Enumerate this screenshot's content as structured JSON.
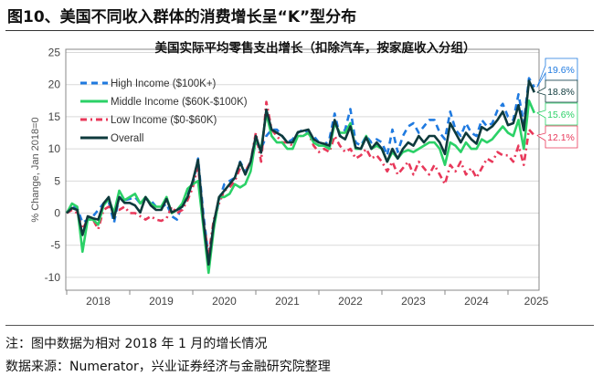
{
  "figure_title": "图10、美国不同收入群体的消费增长呈“K”型分布",
  "notes": [
    "注：图中数据为相对 2018 年 1 月的增长情况",
    "数据来源：Numerator，兴业证券经济与金融研究院整理"
  ],
  "chart_data": {
    "type": "line",
    "title": "美国实际平均零售支出增长（扣除汽车，按家庭收入分组）",
    "ylabel": "% Change, Jan 2018=0",
    "xlabel": "",
    "x_start": "2018-01",
    "x_end": "2025-06",
    "x_frequency": "monthly",
    "xticks": [
      "2018",
      "2019",
      "2020",
      "2021",
      "2022",
      "2023",
      "2024",
      "2025"
    ],
    "yticks": [
      -10,
      -5,
      0,
      5,
      10,
      15,
      20,
      25
    ],
    "ylim": [
      -12,
      25.5
    ],
    "grid": "horizontal",
    "legend_placement": "top-left",
    "series": [
      {
        "name": "High Income ($100K+)",
        "color": "#1f7ae0",
        "style": "dashed",
        "end_label": "19.6%",
        "values": [
          0,
          1.2,
          0.8,
          -1.5,
          -1,
          -0.5,
          0.5,
          1.5,
          1.8,
          -1.5,
          2.5,
          2,
          2.2,
          2.5,
          1.5,
          2.2,
          2,
          1,
          0.8,
          1.5,
          -0.5,
          -1,
          1.5,
          3,
          4.5,
          8.5,
          0,
          -7,
          -2,
          2,
          4.5,
          5,
          5.5,
          8,
          6.5,
          7.5,
          11,
          10,
          12,
          13,
          13,
          12,
          11,
          11.5,
          12.5,
          13,
          12.5,
          12,
          11,
          10.5,
          11.5,
          15.5,
          12,
          13,
          16.2,
          11,
          10.5,
          12,
          11,
          11.5,
          11,
          9,
          13,
          9.5,
          12,
          13.5,
          14,
          12.5,
          13.5,
          14.5,
          14.5,
          12.5,
          11.5,
          15.8,
          13,
          12,
          14,
          12.5,
          12,
          14.5,
          13.5,
          14,
          16,
          17,
          15,
          14.5,
          18.5,
          14,
          21,
          19.6
        ]
      },
      {
        "name": "Middle Income ($60K-$100K)",
        "color": "#2bd167",
        "style": "solid",
        "end_label": "15.6%",
        "values": [
          0,
          1.5,
          1,
          -6,
          -1,
          -1,
          -1.8,
          1.2,
          2.2,
          0,
          3.5,
          2,
          2.5,
          3,
          1.5,
          2.5,
          1.5,
          1,
          1,
          2.5,
          0,
          0.5,
          1.5,
          3.8,
          4.5,
          5,
          -2,
          -9.3,
          -2.5,
          2.5,
          2.5,
          3,
          4.5,
          4,
          4.5,
          6.5,
          11.5,
          10,
          15.5,
          12,
          11,
          11,
          10,
          10,
          12,
          12,
          12.5,
          11,
          10.5,
          10.5,
          10,
          14,
          12.5,
          12.5,
          14,
          10,
          10,
          12,
          10,
          10.5,
          10,
          8,
          9.5,
          8.5,
          9.5,
          9.8,
          9.5,
          10,
          10.5,
          11,
          11,
          10,
          7.5,
          11,
          10.5,
          9.5,
          11,
          10,
          10,
          11.5,
          11,
          11.5,
          12.5,
          13.5,
          12.5,
          12,
          14.5,
          10,
          17.5,
          15.6
        ]
      },
      {
        "name": "Low Income ($0-$60K)",
        "color": "#e8385a",
        "style": "dashdot",
        "end_label": "12.1%",
        "values": [
          0,
          0.5,
          0,
          -2.5,
          -1,
          -1,
          -2.5,
          0.5,
          1,
          0.5,
          0.5,
          1,
          0,
          0,
          -0.5,
          -1,
          -0.5,
          -1,
          -1.2,
          -0.8,
          1,
          0,
          0.5,
          2,
          4,
          7.5,
          -1,
          -6.5,
          -1,
          1.5,
          3.5,
          4,
          5,
          7,
          6.5,
          8,
          12.5,
          8,
          17.3,
          13,
          12,
          11,
          11,
          10.5,
          12,
          12,
          12.5,
          10.5,
          9.5,
          10,
          9.5,
          12,
          10.5,
          9.5,
          10,
          8.5,
          9,
          10,
          8.5,
          9,
          8,
          6.5,
          8,
          6,
          7,
          8,
          6,
          8,
          7,
          6,
          7.5,
          6,
          4.5,
          7.5,
          6.5,
          8,
          6,
          7,
          5.5,
          7,
          8.5,
          8,
          9.5,
          9,
          9,
          8,
          10.5,
          7.5,
          13,
          12.1
        ]
      },
      {
        "name": "Overall",
        "color": "#0e3a3c",
        "style": "solid",
        "end_label": "18.8%",
        "values": [
          0,
          0.8,
          0.5,
          -3.4,
          -0.5,
          -0.8,
          -1,
          1.5,
          2.5,
          -0.8,
          2.5,
          1.6,
          1.6,
          1.2,
          0.1,
          2.5,
          1.2,
          0.5,
          0.5,
          2.2,
          0.1,
          0.5,
          1,
          2.5,
          5,
          8.3,
          -1,
          -8,
          -1.5,
          2.5,
          3.5,
          4.5,
          5.5,
          7.9,
          6,
          8,
          12,
          9.4,
          16.1,
          13,
          12.5,
          12,
          11,
          11,
          12.6,
          12.8,
          13,
          11.5,
          11,
          10.8,
          10.5,
          14.5,
          12,
          11.5,
          13.5,
          10.2,
          10,
          11.8,
          10,
          11,
          10,
          8,
          10,
          8.5,
          10,
          11,
          10.5,
          12,
          11,
          12,
          12,
          11,
          9.2,
          14,
          12.5,
          11,
          12.5,
          11.5,
          10.8,
          13.4,
          12.9,
          13.5,
          14.5,
          15.8,
          13.7,
          14,
          16.8,
          12.9,
          20.6,
          18.8
        ]
      }
    ]
  }
}
